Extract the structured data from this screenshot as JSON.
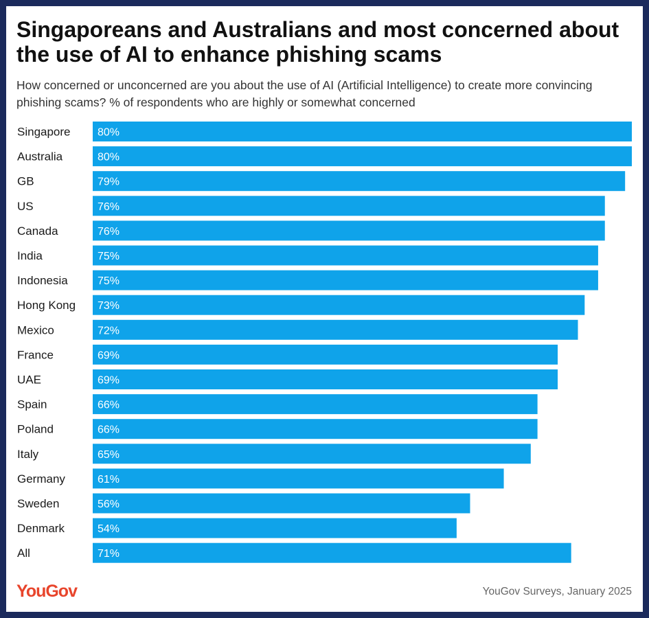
{
  "header": {
    "title": "Singaporeans and Australians and most concerned about the use of AI to enhance phishing scams",
    "subtitle": "How concerned or unconcerned are you about the use of AI (Artificial Intelligence) to create more convincing phishing scams? % of respondents who are highly or somewhat concerned"
  },
  "footer": {
    "logo_text": "YouGov",
    "source": "YouGov Surveys, January 2025"
  },
  "colors": {
    "bar": "#0fa3ea",
    "frame": "#1b2a5c",
    "logo": "#e8452c"
  },
  "chart_data": {
    "type": "bar",
    "orientation": "horizontal",
    "categories": [
      "Singapore",
      "Australia",
      "GB",
      "US",
      "Canada",
      "India",
      "Indonesia",
      "Hong Kong",
      "Mexico",
      "France",
      "UAE",
      "Spain",
      "Poland",
      "Italy",
      "Germany",
      "Sweden",
      "Denmark",
      "All"
    ],
    "values": [
      80,
      80,
      79,
      76,
      76,
      75,
      75,
      73,
      72,
      69,
      69,
      66,
      66,
      65,
      61,
      56,
      54,
      71
    ],
    "value_suffix": "%",
    "xlim": [
      0,
      80
    ],
    "grid": false,
    "legend": "none"
  }
}
